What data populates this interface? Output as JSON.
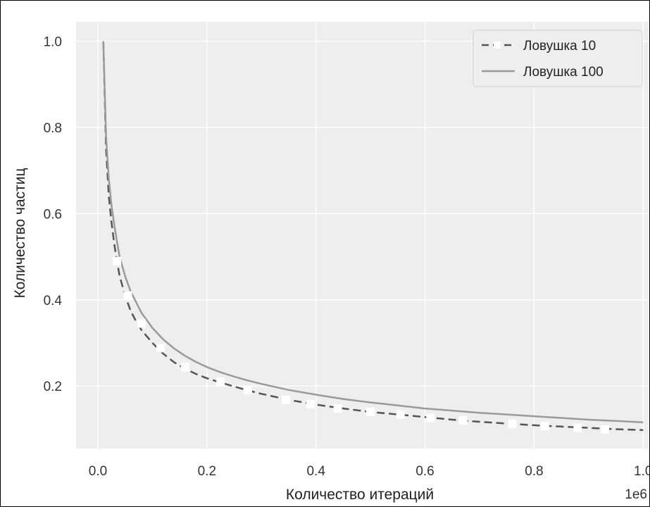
{
  "chart_data": {
    "type": "line",
    "title": "",
    "xlabel": "Количество итераций",
    "ylabel": "Количество частиц",
    "x_offset_label": "1e6",
    "xlim": [
      -0.04,
      1.01
    ],
    "ylim": [
      0.055,
      1.045
    ],
    "xticks": [
      0.0,
      0.2,
      0.4,
      0.6,
      0.8,
      1.0
    ],
    "xtick_labels": [
      "0.0",
      "0.2",
      "0.4",
      "0.6",
      "0.8",
      "1.0"
    ],
    "yticks": [
      0.2,
      0.4,
      0.6,
      0.8,
      1.0
    ],
    "ytick_labels": [
      "0.2",
      "0.4",
      "0.6",
      "0.8",
      "1.0"
    ],
    "grid": true,
    "legend_position": "top-right",
    "colors": {
      "background": "#eeeeee",
      "grid": "#ffffff",
      "series_trap10": "#555555",
      "series_trap100": "#9a9a9a",
      "markers": "#ffffff"
    },
    "series": [
      {
        "name": "Ловушка 10",
        "style": "dashed",
        "x": [
          0.01,
          0.015,
          0.02,
          0.025,
          0.03,
          0.035,
          0.04,
          0.05,
          0.06,
          0.07,
          0.08,
          0.1,
          0.12,
          0.14,
          0.16,
          0.18,
          0.2,
          0.225,
          0.25,
          0.275,
          0.3,
          0.35,
          0.4,
          0.45,
          0.5,
          0.55,
          0.6,
          0.65,
          0.7,
          0.75,
          0.8,
          0.85,
          0.9,
          0.95,
          1.0
        ],
        "y": [
          1.0,
          0.75,
          0.64,
          0.58,
          0.53,
          0.49,
          0.455,
          0.41,
          0.375,
          0.35,
          0.33,
          0.3,
          0.275,
          0.255,
          0.24,
          0.228,
          0.218,
          0.208,
          0.199,
          0.19,
          0.182,
          0.168,
          0.157,
          0.148,
          0.14,
          0.134,
          0.128,
          0.122,
          0.117,
          0.113,
          0.109,
          0.106,
          0.103,
          0.1,
          0.098
        ]
      },
      {
        "name": "Ловушка 100",
        "style": "solid",
        "x": [
          0.01,
          0.015,
          0.02,
          0.025,
          0.03,
          0.035,
          0.04,
          0.05,
          0.06,
          0.07,
          0.08,
          0.1,
          0.12,
          0.14,
          0.16,
          0.18,
          0.2,
          0.225,
          0.25,
          0.275,
          0.3,
          0.35,
          0.4,
          0.45,
          0.5,
          0.55,
          0.6,
          0.65,
          0.7,
          0.75,
          0.8,
          0.85,
          0.9,
          0.95,
          1.0
        ],
        "y": [
          1.0,
          0.78,
          0.68,
          0.62,
          0.575,
          0.535,
          0.5,
          0.455,
          0.42,
          0.395,
          0.37,
          0.335,
          0.308,
          0.287,
          0.27,
          0.256,
          0.244,
          0.232,
          0.222,
          0.213,
          0.205,
          0.191,
          0.18,
          0.17,
          0.162,
          0.155,
          0.148,
          0.143,
          0.138,
          0.134,
          0.13,
          0.126,
          0.122,
          0.119,
          0.116
        ]
      }
    ],
    "marker_points": {
      "x": [
        0.035,
        0.055,
        0.08,
        0.115,
        0.16,
        0.225,
        0.275,
        0.345,
        0.39,
        0.44,
        0.5,
        0.555,
        0.61,
        0.67,
        0.76,
        0.82,
        0.88,
        0.93
      ],
      "y": [
        0.49,
        0.41,
        0.345,
        0.288,
        0.244,
        0.21,
        0.19,
        0.168,
        0.158,
        0.148,
        0.14,
        0.134,
        0.126,
        0.12,
        0.112,
        0.107,
        0.103,
        0.099
      ]
    }
  }
}
